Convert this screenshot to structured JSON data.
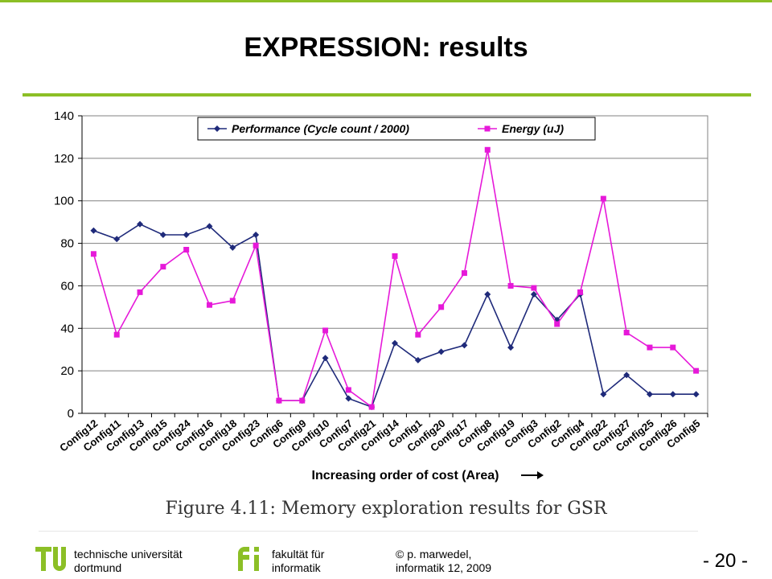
{
  "slide": {
    "title": "EXPRESSION: results",
    "caption": "Figure 4.11:  Memory exploration results for GSR"
  },
  "footer": {
    "university_line1": "technische universität",
    "university_line2": "dortmund",
    "faculty_line1": "fakultät für",
    "faculty_line2": "informatik",
    "author_line1": "© p. marwedel,",
    "author_line2": "informatik 12,  2009",
    "page_number": "-  20 -"
  },
  "colors": {
    "accent": "#8cbf26",
    "performance": "#1f2a7a",
    "energy": "#e619d9"
  },
  "icons": {
    "university_logo": "tu-logo-icon",
    "faculty_logo": "fi-logo-icon"
  },
  "chart_data": {
    "type": "line",
    "title": "",
    "xlabel": "Increasing order of cost (Area)",
    "ylabel": "",
    "ylim": [
      0,
      140
    ],
    "yticks": [
      0,
      20,
      40,
      60,
      80,
      100,
      120,
      140
    ],
    "grid": true,
    "legend_position": "top",
    "categories": [
      "Config12",
      "Config11",
      "Config13",
      "Config15",
      "Config24",
      "Config16",
      "Config18",
      "Config23",
      "Config6",
      "Config9",
      "Config10",
      "Config7",
      "Config21",
      "Config14",
      "Config1",
      "Config20",
      "Config17",
      "Config8",
      "Config19",
      "Config3",
      "Config2",
      "Config4",
      "Config22",
      "Config27",
      "Config25",
      "Config26",
      "Config5"
    ],
    "series": [
      {
        "name": "Performance (Cycle count / 2000)",
        "color": "#1f2a7a",
        "marker": "diamond",
        "values": [
          86,
          82,
          89,
          84,
          84,
          88,
          78,
          84,
          6,
          6,
          26,
          7,
          3,
          33,
          25,
          29,
          32,
          56,
          31,
          56,
          44,
          56,
          9,
          18,
          9,
          9,
          9
        ]
      },
      {
        "name": "Energy (uJ)",
        "color": "#e619d9",
        "marker": "square",
        "values": [
          75,
          37,
          57,
          69,
          77,
          51,
          53,
          79,
          6,
          6,
          39,
          11,
          3,
          74,
          37,
          50,
          66,
          124,
          60,
          59,
          42,
          57,
          101,
          38,
          31,
          31,
          20
        ]
      }
    ]
  }
}
